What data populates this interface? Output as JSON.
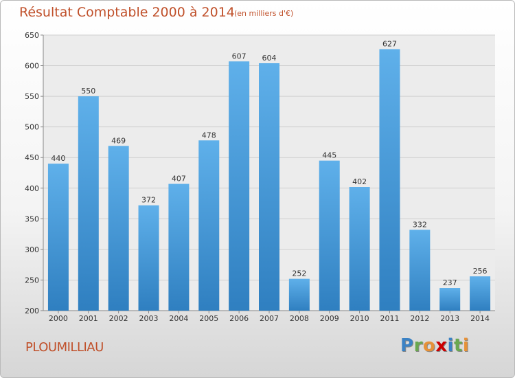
{
  "title": "Résultat Comptable 2000 à 2014",
  "subtitle": "(en milliers d'€)",
  "commune": "PLOUMILLIAU",
  "brand": {
    "letters": [
      "P",
      "r",
      "o",
      "x",
      "i",
      "t",
      "i"
    ],
    "colors": [
      "#3b82c4",
      "#6aa84f",
      "#e69138",
      "#cc0000",
      "#3b82c4",
      "#6aa84f",
      "#e69138"
    ]
  },
  "colors": {
    "bar": "#4a9ee0",
    "bar_dark": "#2f7fc0",
    "text_accent": "#c0502a"
  },
  "chart_data": {
    "type": "bar",
    "categories": [
      "2000",
      "2001",
      "2002",
      "2003",
      "2004",
      "2005",
      "2006",
      "2007",
      "2008",
      "2009",
      "2010",
      "2011",
      "2012",
      "2013",
      "2014"
    ],
    "values": [
      440,
      550,
      469,
      372,
      407,
      478,
      607,
      604,
      252,
      445,
      402,
      627,
      332,
      237,
      256
    ],
    "ylim": [
      200,
      650
    ],
    "yticks": [
      200,
      250,
      300,
      350,
      400,
      450,
      500,
      550,
      600,
      650
    ],
    "grid": true
  }
}
